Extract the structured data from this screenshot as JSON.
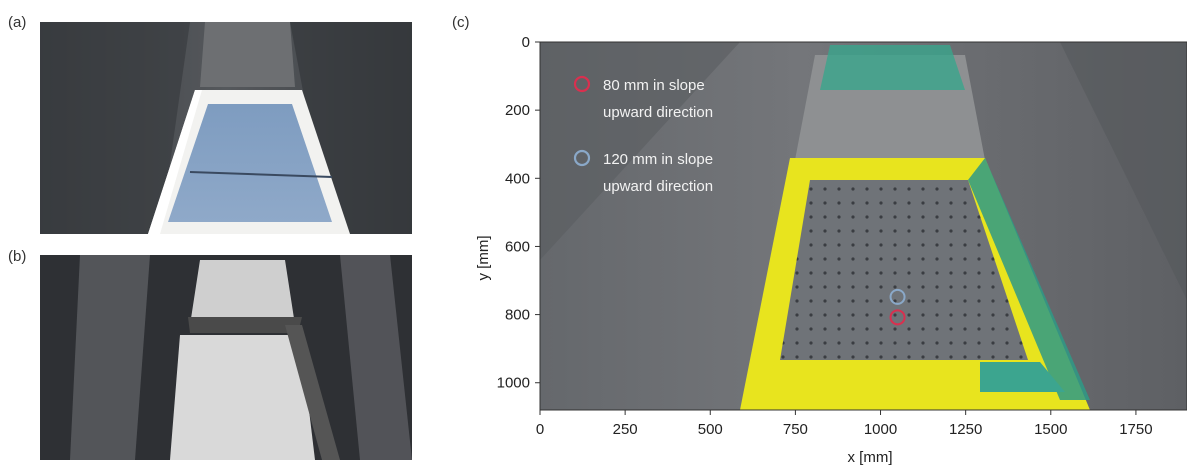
{
  "figure": {
    "panel_a_label": "(a)",
    "panel_b_label": "(b)",
    "panel_c_label": "(c)"
  },
  "chart_data": {
    "type": "scatter",
    "xlabel": "x [mm]",
    "ylabel": "y [mm]",
    "xlim": [
      0,
      1900
    ],
    "ylim": [
      1080,
      0
    ],
    "x_ticks": [
      0,
      250,
      500,
      750,
      1000,
      1250,
      1500,
      1750
    ],
    "y_ticks": [
      0,
      200,
      400,
      600,
      800,
      1000
    ],
    "legend_placement": "top-left",
    "series": [
      {
        "name": "80 mm in slope upward direction",
        "color": "#d9304f",
        "x": [
          1050
        ],
        "y": [
          808
        ]
      },
      {
        "name": "120 mm in slope upward direction",
        "color": "#8aa8c8",
        "x": [
          1050
        ],
        "y": [
          748
        ]
      }
    ]
  }
}
